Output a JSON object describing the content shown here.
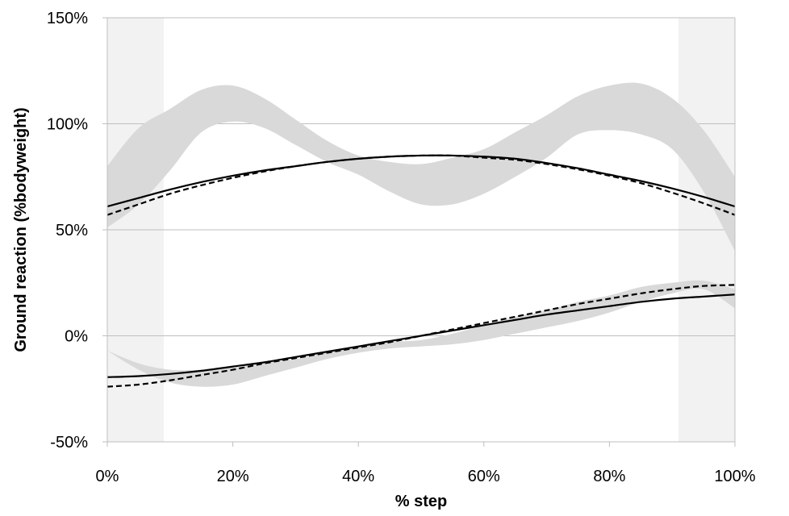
{
  "chart_data": {
    "type": "line",
    "title": "",
    "xlabel": "% step",
    "ylabel": "Ground reaction (%bodyweight)",
    "xlim": [
      0,
      100
    ],
    "ylim": [
      -50,
      150
    ],
    "grid": "horizontal",
    "legend": "none",
    "x_ticks": [
      0,
      20,
      40,
      60,
      80,
      100
    ],
    "x_tick_labels": [
      "0%",
      "20%",
      "40%",
      "60%",
      "80%",
      "100%"
    ],
    "y_ticks": [
      -50,
      0,
      50,
      100,
      150
    ],
    "y_tick_labels": [
      "-50%",
      "0%",
      "50%",
      "100%",
      "150%"
    ],
    "shaded_regions": [
      {
        "x_start": 0,
        "x_end": 9,
        "color": "#f2f2f2"
      },
      {
        "x_start": 91,
        "x_end": 100,
        "color": "#f2f2f2"
      }
    ],
    "x": [
      0,
      5,
      10,
      15,
      20,
      25,
      30,
      35,
      40,
      45,
      50,
      55,
      60,
      65,
      70,
      75,
      80,
      85,
      90,
      95,
      100
    ],
    "bands": [
      {
        "color": "#d9d9d9",
        "lower": [
          51,
          62,
          78,
          96,
          101,
          98,
          90,
          82,
          76,
          68,
          62,
          62,
          67,
          75,
          84,
          95,
          97,
          95,
          88,
          68,
          40
        ],
        "upper": [
          80,
          98,
          107,
          116,
          118,
          112,
          102,
          92,
          85,
          82,
          81,
          84,
          88,
          96,
          104,
          113,
          118,
          119,
          112,
          97,
          75
        ]
      },
      {
        "color": "#d9d9d9",
        "lower": [
          -7,
          -16,
          -22,
          -24,
          -23,
          -19,
          -15,
          -11,
          -8,
          -6,
          -5,
          -4,
          -2,
          1,
          4,
          7,
          11,
          16,
          20,
          22,
          13
        ],
        "upper": [
          -7,
          -13,
          -16,
          -16,
          -15,
          -13,
          -11,
          -8,
          -5,
          -3,
          -2,
          1,
          5,
          9,
          12,
          16,
          19,
          23,
          25,
          26,
          22
        ]
      }
    ],
    "series": [
      {
        "style": "solid",
        "color": "#000000",
        "values": [
          61,
          65,
          69,
          72.5,
          75.5,
          78,
          80,
          82,
          83.5,
          84.5,
          85,
          85,
          84.5,
          83.5,
          81.5,
          79,
          76,
          73,
          69.5,
          65.5,
          61
        ]
      },
      {
        "style": "dashed",
        "color": "#000000",
        "values": [
          57,
          62,
          67,
          71,
          74.5,
          77.5,
          80,
          82,
          83.5,
          84.5,
          85,
          85,
          84,
          83,
          81,
          78.5,
          75.5,
          72,
          67.5,
          62.5,
          57
        ]
      },
      {
        "style": "solid",
        "color": "#000000",
        "values": [
          -19.5,
          -19,
          -18,
          -16.5,
          -14.5,
          -12.5,
          -10,
          -7.5,
          -5,
          -2.5,
          0,
          2.5,
          5,
          7.5,
          10,
          12,
          14,
          16,
          17.5,
          18.5,
          19.5
        ]
      },
      {
        "style": "dashed",
        "color": "#000000",
        "values": [
          -24,
          -23,
          -21,
          -18.5,
          -16,
          -13,
          -10.5,
          -8,
          -5.5,
          -3,
          0,
          3,
          6,
          9,
          12,
          15,
          17.5,
          20,
          22,
          23.5,
          24
        ]
      }
    ]
  }
}
